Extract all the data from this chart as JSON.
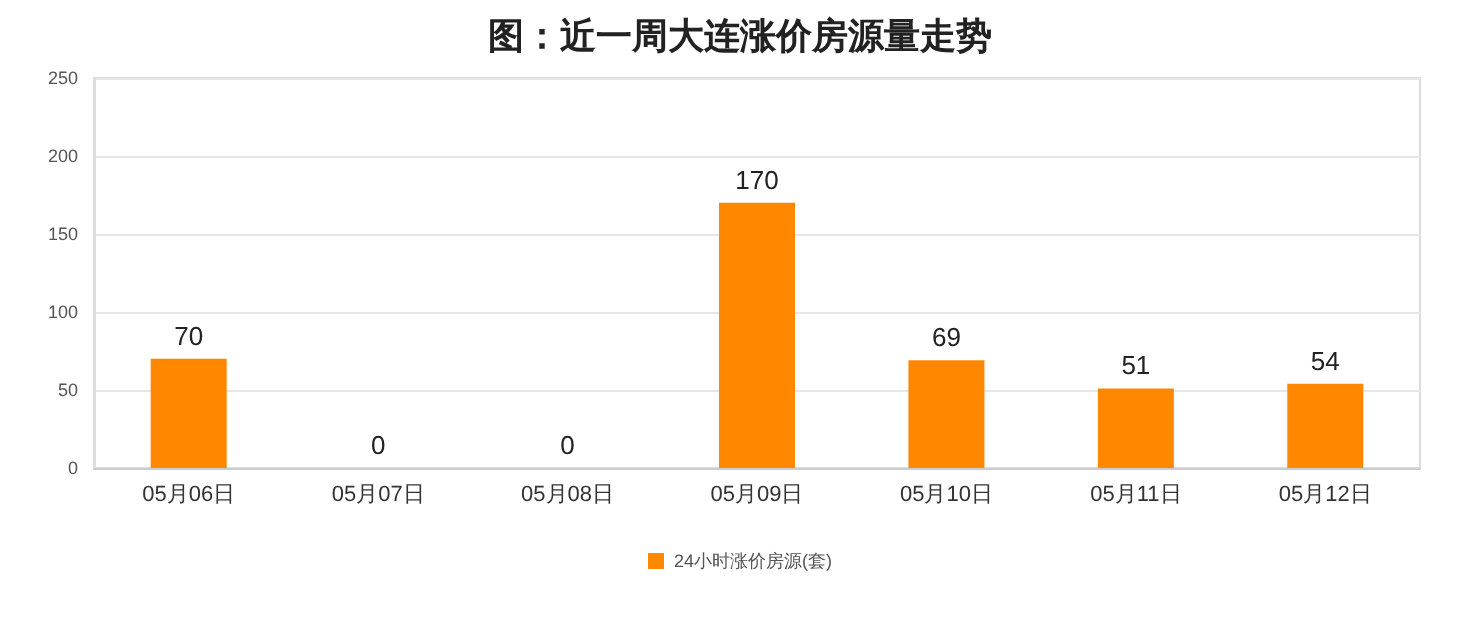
{
  "chart_data": {
    "type": "bar",
    "title": "图：近一周大连涨价房源量走势",
    "categories": [
      "05月06日",
      "05月07日",
      "05月08日",
      "05月09日",
      "05月10日",
      "05月11日",
      "05月12日"
    ],
    "series": [
      {
        "name": "24小时涨价房源(套)",
        "color": "#ff8800",
        "values": [
          70,
          0,
          0,
          170,
          69,
          51,
          54
        ]
      }
    ],
    "ylim": [
      0,
      250
    ],
    "yticks": [
      0,
      50,
      100,
      150,
      200,
      250
    ],
    "grid": "y",
    "legend": "bottom",
    "data_labels": true
  }
}
